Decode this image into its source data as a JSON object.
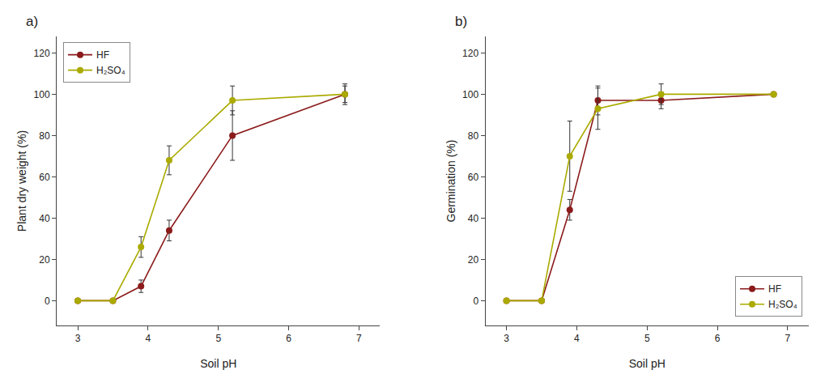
{
  "chart_data": [
    {
      "type": "line",
      "title": "a)",
      "xlabel": "Soil pH",
      "ylabel": "Plant dry weight (%)",
      "x": [
        3.0,
        3.5,
        3.9,
        4.3,
        5.2,
        6.8
      ],
      "series": [
        {
          "name": "HF",
          "color": "#8B1A1A",
          "marker": "circle",
          "values": [
            0,
            0,
            7,
            34,
            80,
            100
          ],
          "errors": [
            0,
            0,
            3,
            5,
            12,
            4
          ]
        },
        {
          "name": "H₂SO₄",
          "color": "#AAAA00",
          "marker": "circle",
          "values": [
            0,
            0,
            26,
            68,
            97,
            100
          ],
          "errors": [
            0,
            0,
            5,
            7,
            7,
            5
          ]
        }
      ],
      "xlim": [
        2.7,
        7.3
      ],
      "xticks": [
        3,
        4,
        5,
        6,
        7
      ],
      "ylim": [
        -12,
        128
      ],
      "yticks": [
        0,
        20,
        40,
        60,
        80,
        100,
        120
      ],
      "grid": false,
      "legend": "upper left"
    },
    {
      "type": "line",
      "title": "b)",
      "xlabel": "Soil pH",
      "ylabel": "Germination (%)",
      "x": [
        3.0,
        3.5,
        3.9,
        4.3,
        5.2,
        6.8
      ],
      "series": [
        {
          "name": "HF",
          "color": "#8B1A1A",
          "marker": "circle",
          "values": [
            0,
            0,
            44,
            97,
            97,
            100
          ],
          "errors": [
            0,
            0,
            5,
            7,
            4,
            0
          ]
        },
        {
          "name": "H₂SO₄",
          "color": "#AAAA00",
          "marker": "circle",
          "values": [
            0,
            0,
            70,
            93,
            100,
            100
          ],
          "errors": [
            0,
            0,
            17,
            10,
            5,
            0
          ]
        }
      ],
      "xlim": [
        2.7,
        7.3
      ],
      "xticks": [
        3,
        4,
        5,
        6,
        7
      ],
      "ylim": [
        -12,
        128
      ],
      "yticks": [
        0,
        20,
        40,
        60,
        80,
        100,
        120
      ],
      "grid": false,
      "legend": "lower right"
    }
  ]
}
